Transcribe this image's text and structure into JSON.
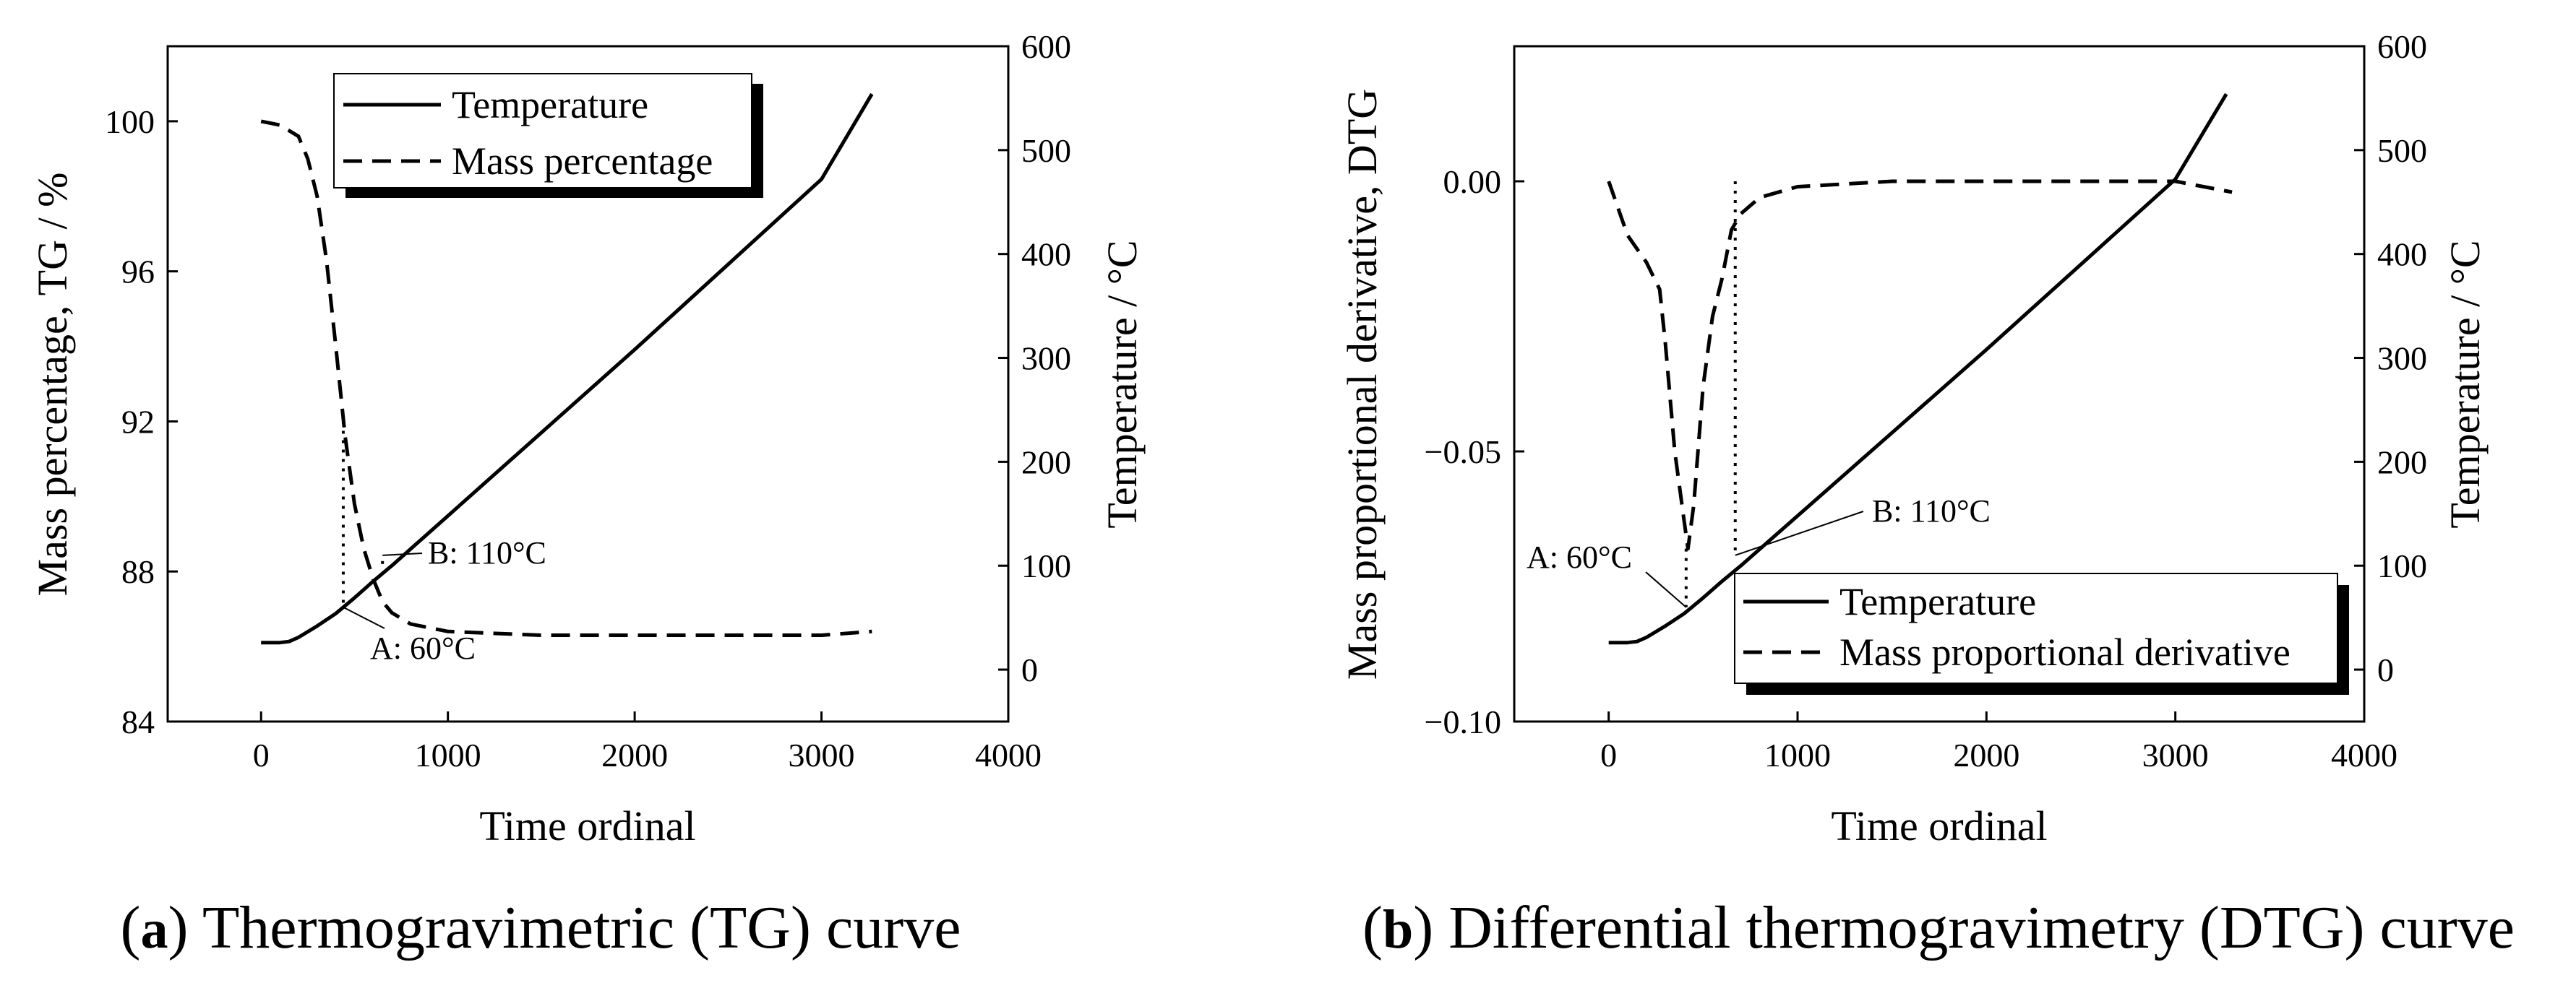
{
  "chart_data": [
    {
      "type": "line",
      "caption_letter": "a",
      "caption_text": "Thermogravimetric (TG) curve",
      "xlabel": "Time ordinal",
      "ylabel_left": "Mass percentage, TG / %",
      "ylabel_right": "Temperature / °C",
      "xlim": [
        -500,
        4000
      ],
      "ylim_left": [
        84,
        102
      ],
      "ylim_right": [
        -50,
        600
      ],
      "xticks": [
        0,
        1000,
        2000,
        3000,
        4000
      ],
      "yticks_left": [
        84,
        88,
        92,
        96,
        100
      ],
      "yticks_left_labels": [
        "84",
        "88",
        "92",
        "96",
        "100"
      ],
      "yticks_right": [
        0,
        100,
        200,
        300,
        400,
        500,
        600
      ],
      "legend": [
        "Temperature",
        "Mass percentage"
      ],
      "legend_position": "top-left",
      "series": [
        {
          "name": "Temperature",
          "axis": "right",
          "style": "solid",
          "x": [
            0,
            100,
            150,
            200,
            300,
            400,
            500,
            600,
            700,
            1000,
            1500,
            2000,
            2500,
            3000,
            3270
          ],
          "y": [
            26,
            26,
            27,
            31,
            42,
            54,
            69,
            85,
            100,
            148,
            228,
            308,
            390,
            472,
            554
          ]
        },
        {
          "name": "Mass percentage",
          "axis": "left",
          "style": "dashed",
          "x": [
            0,
            100,
            200,
            250,
            300,
            350,
            400,
            450,
            500,
            550,
            600,
            650,
            700,
            800,
            1000,
            1500,
            2000,
            2500,
            3000,
            3270
          ],
          "y": [
            100.0,
            99.9,
            99.6,
            99.0,
            98.0,
            96.3,
            94.0,
            91.6,
            89.8,
            88.6,
            87.8,
            87.2,
            86.9,
            86.6,
            86.4,
            86.3,
            86.3,
            86.3,
            86.3,
            86.4
          ]
        }
      ],
      "annotations": [
        {
          "label": "A: 60°C",
          "x": 440,
          "temperature": 60
        },
        {
          "label": "B: 110°C",
          "x": 650,
          "temperature": 110
        }
      ]
    },
    {
      "type": "line",
      "caption_letter": "b",
      "caption_text": "Differential thermogravimetry (DTG) curve",
      "xlabel": "Time ordinal",
      "ylabel_left": "Mass proportional derivative, DTG",
      "ylabel_right": "Temperature / °C",
      "xlim": [
        -500,
        4000
      ],
      "ylim_left": [
        -0.1,
        0.025
      ],
      "ylim_right": [
        -50,
        600
      ],
      "xticks": [
        0,
        1000,
        2000,
        3000,
        4000
      ],
      "yticks_left": [
        -0.1,
        -0.05,
        0.0
      ],
      "yticks_left_labels": [
        "−0.10",
        "−0.05",
        "0.00"
      ],
      "yticks_right": [
        0,
        100,
        200,
        300,
        400,
        500,
        600
      ],
      "legend": [
        "Temperature",
        "Mass proportional derivative"
      ],
      "legend_position": "bottom-right",
      "series": [
        {
          "name": "Temperature",
          "axis": "right",
          "style": "solid",
          "x": [
            0,
            100,
            150,
            200,
            300,
            400,
            500,
            600,
            700,
            1000,
            1500,
            2000,
            2500,
            3000,
            3270
          ],
          "y": [
            26,
            26,
            27,
            31,
            42,
            54,
            69,
            85,
            100,
            148,
            228,
            308,
            390,
            472,
            554
          ]
        },
        {
          "name": "Mass proportional derivative",
          "axis": "left",
          "style": "dashed",
          "x": [
            0,
            100,
            200,
            270,
            300,
            350,
            400,
            420,
            450,
            500,
            550,
            600,
            650,
            700,
            800,
            1000,
            1500,
            2000,
            2500,
            3000,
            3300
          ],
          "y": [
            0.0,
            -0.01,
            -0.015,
            -0.02,
            -0.03,
            -0.05,
            -0.063,
            -0.068,
            -0.06,
            -0.038,
            -0.025,
            -0.018,
            -0.009,
            -0.006,
            -0.003,
            -0.001,
            0.0,
            0.0,
            0.0,
            0.0,
            -0.002
          ]
        }
      ],
      "annotations": [
        {
          "label": "A: 60°C",
          "x": 410,
          "temperature": 60
        },
        {
          "label": "B: 110°C",
          "x": 670,
          "temperature": 110
        }
      ]
    }
  ]
}
